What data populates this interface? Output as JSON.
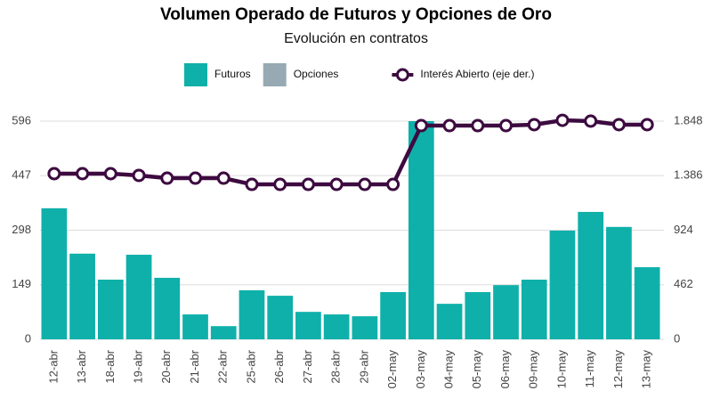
{
  "chart_data": {
    "type": "bar",
    "title": "Volumen Operado de Futuros y Opciones de Oro",
    "subtitle": "Evolución en contratos",
    "categories": [
      "12-abr",
      "13-abr",
      "18-abr",
      "19-abr",
      "20-abr",
      "21-abr",
      "22-abr",
      "25-abr",
      "26-abr",
      "27-abr",
      "28-abr",
      "29-abr",
      "02-may",
      "03-may",
      "04-may",
      "05-may",
      "06-may",
      "09-may",
      "10-may",
      "11-may",
      "12-may",
      "13-may"
    ],
    "series": [
      {
        "name": "Futuros",
        "color": "#0fb0aa",
        "values": [
          358,
          234,
          163,
          231,
          168,
          68,
          36,
          134,
          119,
          75,
          68,
          63,
          129,
          596,
          97,
          129,
          148,
          163,
          297,
          348,
          307,
          197
        ]
      },
      {
        "name": "Opciones",
        "color": "#97a9b3",
        "values": [
          0,
          0,
          0,
          0,
          0,
          0,
          0,
          0,
          0,
          0,
          0,
          0,
          0,
          0,
          0,
          0,
          0,
          0,
          0,
          0,
          0,
          0
        ]
      },
      {
        "name": "Interés Abierto (eje der.)",
        "color": "#3d0a40",
        "type": "line",
        "axis": "y2",
        "values": [
          1403,
          1403,
          1403,
          1388,
          1365,
          1365,
          1365,
          1312,
          1312,
          1312,
          1312,
          1312,
          1312,
          1810,
          1810,
          1810,
          1810,
          1818,
          1855,
          1848,
          1818,
          1818
        ]
      }
    ],
    "ylim": [
      0,
      596
    ],
    "yticks": [
      0,
      149,
      298,
      447,
      596
    ],
    "y2lim": [
      0,
      1848
    ],
    "y2ticks": [
      0,
      462,
      924,
      {
        "value": 1386,
        "label": "1.386"
      },
      {
        "value": 1848,
        "label": "1.848"
      }
    ],
    "grid": true,
    "legend": "top"
  }
}
